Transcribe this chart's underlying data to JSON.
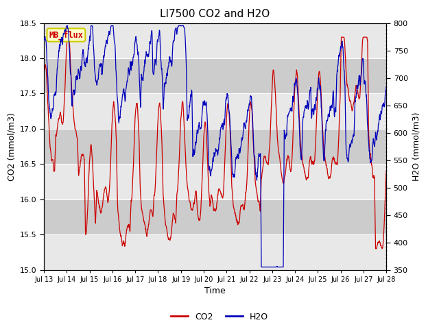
{
  "title": "LI7500 CO2 and H2O",
  "xlabel": "Time",
  "ylabel_left": "CO2 (mmol/m3)",
  "ylabel_right": "H2O (mmol/m3)",
  "co2_ylim": [
    15.0,
    18.5
  ],
  "h2o_ylim": [
    350,
    800
  ],
  "co2_yticks": [
    15.0,
    15.5,
    16.0,
    16.5,
    17.0,
    17.5,
    18.0,
    18.5
  ],
  "h2o_yticks": [
    350,
    400,
    450,
    500,
    550,
    600,
    650,
    700,
    750,
    800
  ],
  "co2_color": "#cc0000",
  "h2o_color": "#0000bb",
  "background_color": "#ffffff",
  "plot_bg_color": "#cccccc",
  "band_color_light": "#e8e8e8",
  "label_box_color": "#ffffcc",
  "label_box_edge": "#cccc00",
  "label_text": "MB_flux",
  "label_text_color": "#cc0000",
  "legend_co2": "CO2",
  "legend_h2o": "H2O",
  "xtick_labels": [
    "Jul 13",
    "Jul 14",
    "Jul 15",
    "Jul 16",
    "Jul 17",
    "Jul 18",
    "Jul 19",
    "Jul 20",
    "Jul 21",
    "Jul 22",
    "Jul 23",
    "Jul 24",
    "Jul 25",
    "Jul 26",
    "Jul 27",
    "Jul 28"
  ],
  "n_points": 1500,
  "figsize": [
    6.4,
    4.8
  ],
  "dpi": 100
}
